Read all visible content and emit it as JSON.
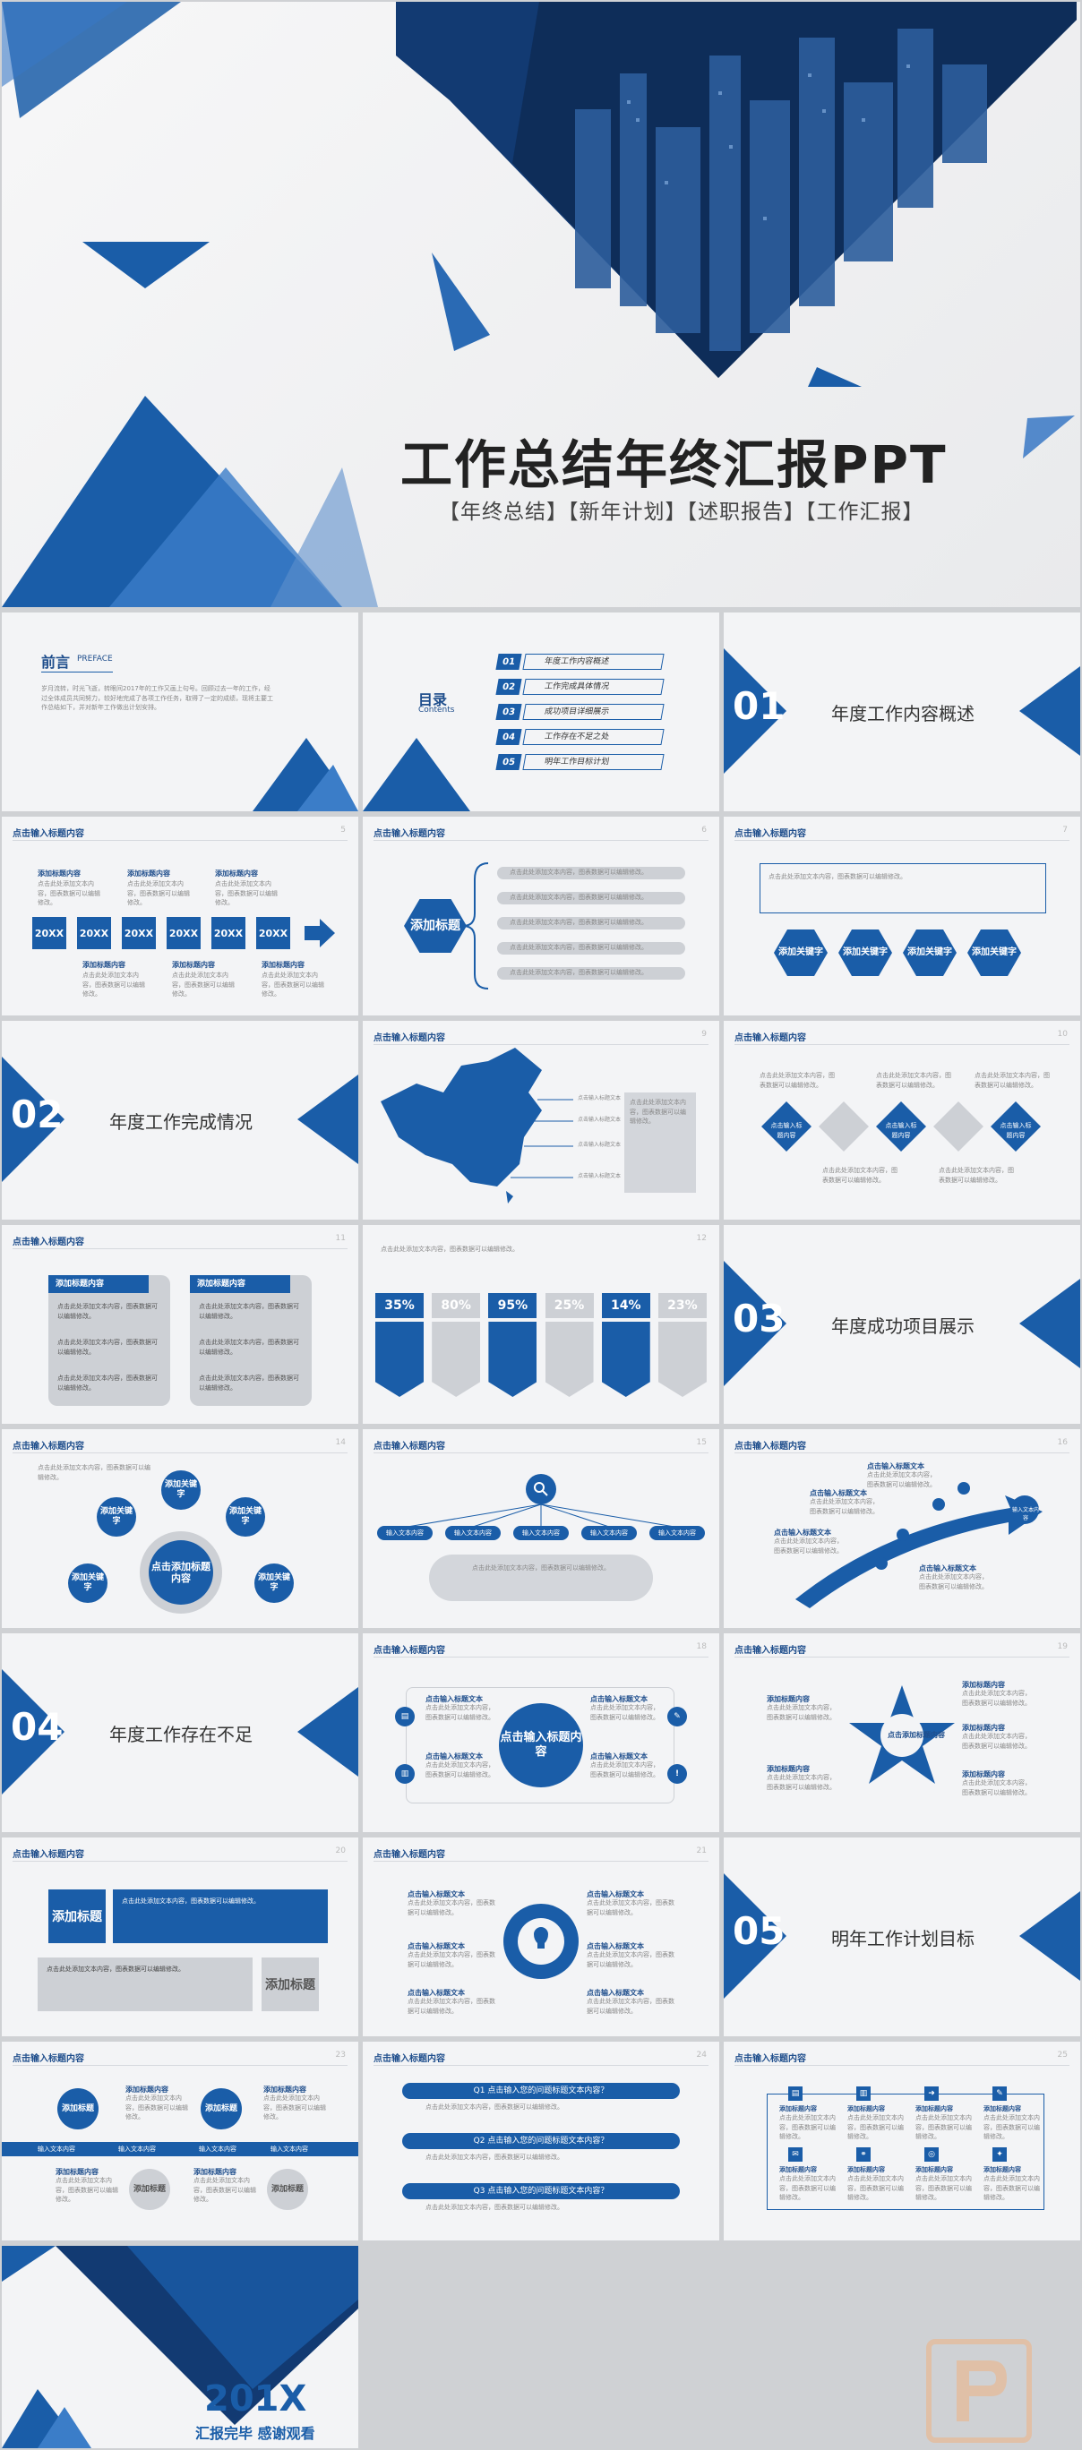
{
  "hero": {
    "title": "工作总结年终汇报PPT",
    "tags": "【年终总结】【新年计划】【述职报告】【工作汇报】"
  },
  "preface": {
    "title": "前言",
    "sub": "PREFACE",
    "body": "岁月流转，时光飞逝，转眼间2017年的工作又画上句号。回顾过去一年的工作，经过全体成员共同努力，较好地完成了各项工作任务，取得了一定的成绩，现将主要工作总结如下，并对新年工作做出计划安排。"
  },
  "toc": {
    "title": "目录",
    "sub": "Contents",
    "items": [
      {
        "num": "01",
        "label": "年度工作内容概述"
      },
      {
        "num": "02",
        "label": "工作完成具体情况"
      },
      {
        "num": "03",
        "label": "成功项目详细展示"
      },
      {
        "num": "04",
        "label": "工作存在不足之处"
      },
      {
        "num": "05",
        "label": "明年工作目标计划"
      }
    ]
  },
  "sections": [
    {
      "num": "01",
      "title": "年度工作内容概述"
    },
    {
      "num": "02",
      "title": "年度工作完成情况"
    },
    {
      "num": "03",
      "title": "年度成功项目展示"
    },
    {
      "num": "04",
      "title": "年度工作存在不足"
    },
    {
      "num": "05",
      "title": "明年工作计划目标"
    }
  ],
  "header": "点击输入标题内容",
  "common": {
    "add_content": "添加标题内容",
    "add_title": "添加标题",
    "add_keyword": "添加关键字",
    "input_text": "点击输入标题文本",
    "input_content": "点击输入标题内容",
    "click_add": "点击添加标题内容",
    "input_text2": "输入文本内容",
    "body": "点击此处添加文本内容，图表数据可以编辑修改。"
  },
  "timeline": {
    "years": [
      "20XX",
      "20XX",
      "20XX",
      "20XX",
      "20XX",
      "20XX"
    ]
  },
  "percents": [
    "35%",
    "80%",
    "95%",
    "25%",
    "14%",
    "23%"
  ],
  "questions": [
    "Q1  点击输入您的问题标题文本内容？",
    "Q2  点击输入您的问题标题文本内容？",
    "Q3  点击输入您的问题标题文本内容？"
  ],
  "page_numbers": [
    "5",
    "6",
    "7",
    "9",
    "10",
    "11",
    "12",
    "14",
    "15",
    "16",
    "18",
    "19",
    "20",
    "21",
    "23",
    "24",
    "25"
  ],
  "ending": {
    "year": "201X",
    "sub": "汇报完毕  感谢观看"
  },
  "colors": {
    "accent": "#1a5da8",
    "grey": "#cdd0d5",
    "bg": "#f3f4f6"
  }
}
